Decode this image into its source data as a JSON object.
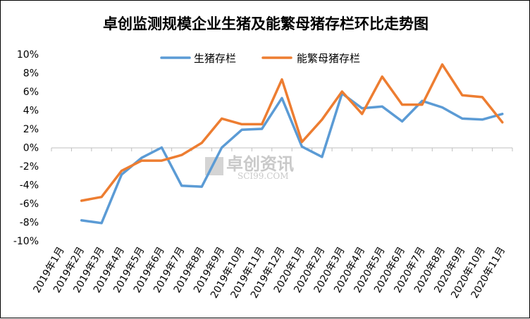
{
  "chart_data": {
    "type": "line",
    "title": "卓创监测规模企业生猪及能繁母猪存栏环比走势图",
    "xlabel": "",
    "ylabel": "",
    "ylim": [
      -10,
      10
    ],
    "y_ticks": [
      "10%",
      "8%",
      "6%",
      "4%",
      "2%",
      "0%",
      "-2%",
      "-4%",
      "-6%",
      "-8%",
      "-10%"
    ],
    "y_tick_values": [
      10,
      8,
      6,
      4,
      2,
      0,
      -2,
      -4,
      -6,
      -8,
      -10
    ],
    "categories": [
      "2019年1月",
      "2019年2月",
      "2019年3月",
      "2019年4月",
      "2019年5月",
      "2019年6月",
      "2019年7月",
      "2019年8月",
      "2019年9月",
      "2019年10月",
      "2019年11月",
      "2019年12月",
      "2020年1月",
      "2020年2月",
      "2020年3月",
      "2020年4月",
      "2020年5月",
      "2020年6月",
      "2020年7月",
      "2020年8月",
      "2020年9月",
      "2020年10月",
      "2020年11月"
    ],
    "series": [
      {
        "name": "生猪存栏",
        "color": "#5b9bd5",
        "values": [
          null,
          -7.8,
          -8.1,
          -2.9,
          -1.1,
          0.0,
          -4.1,
          -4.2,
          0.0,
          1.9,
          2.0,
          5.3,
          0.1,
          -1.0,
          5.8,
          4.2,
          4.4,
          2.8,
          5.0,
          4.3,
          3.1,
          3.0,
          3.6
        ]
      },
      {
        "name": "能繁母猪存栏",
        "color": "#ed7d31",
        "values": [
          null,
          -5.7,
          -5.3,
          -2.5,
          -1.4,
          -1.4,
          -0.8,
          0.5,
          3.1,
          2.5,
          2.5,
          7.3,
          0.6,
          3.0,
          6.0,
          3.6,
          7.6,
          4.6,
          4.6,
          8.9,
          5.6,
          5.4,
          2.7
        ]
      }
    ],
    "legend_position": "top-center",
    "grid": false
  },
  "watermark": {
    "main": "卓创资讯",
    "sub": "SCI99.COM"
  }
}
